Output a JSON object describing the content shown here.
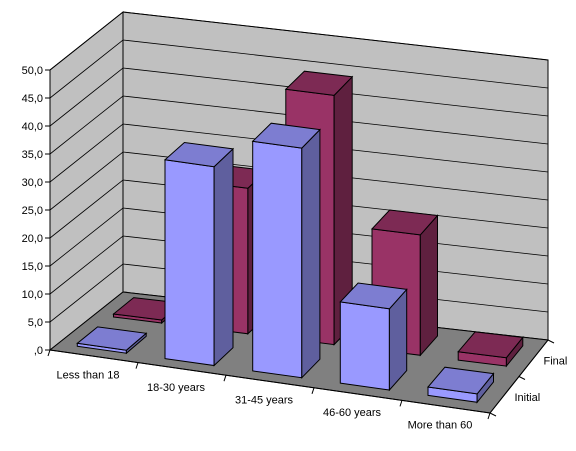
{
  "chart_data": {
    "type": "bar",
    "style": "3d-column",
    "categories": [
      "Less than 18",
      "18-30 years",
      "31-45 years",
      "46-60 years",
      "More than 60"
    ],
    "series": [
      {
        "name": "Initial",
        "values": [
          0.5,
          35.5,
          41.0,
          14.5,
          1.5
        ],
        "color": "#9999ff"
      },
      {
        "name": "Final",
        "values": [
          0.5,
          26.0,
          44.5,
          21.5,
          1.5
        ],
        "color": "#993366"
      }
    ],
    "y_ticks": [
      ",0",
      "5,0",
      "10,0",
      "15,0",
      "20,0",
      "25,0",
      "30,0",
      "35,0",
      "40,0",
      "45,0",
      "50,0"
    ],
    "ylim": [
      0,
      50
    ],
    "grid": true,
    "wall_color": "#c0c0c0",
    "floor_color": "#808080"
  }
}
